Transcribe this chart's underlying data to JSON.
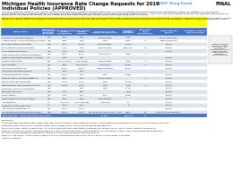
{
  "title_line1": "Michigan Health Insurance Rate Change Requests for 2016",
  "title_link": "SERFF Filing Portal",
  "title_right": "FINAL",
  "title_line2": "Individual Policies (APPROVED)",
  "bg_color": "#ffffff",
  "header_bg": "#4472c4",
  "header_text_color": "#ffffff",
  "row_alt1": "#dce6f1",
  "row_alt2": "#ffffff",
  "yellow_bg": "#ffff00",
  "total_bg": "#4472c4",
  "total_text": "#ffffff",
  "columns": [
    "Issuer/Insurer",
    "Participation\nin Federally\nFacilitated\nMarketplace",
    "Requested Rate\nChange\n(Unrestricted)",
    "Approved Rate\nChange\n(Actuarial)",
    "Premium Rate from\nInsurers Exceeding 10%",
    "Number of\nAffected\nIndividuals",
    "Enrollment\nOn/Off\n(Marketplace)",
    "SERFF Tracking\nNumber",
    "Estimated Adjusted\nRate Conversion"
  ],
  "rows": [
    [
      "AmeriHealth Insurance Company",
      "Yes",
      "8.5%",
      "4.0%",
      "Indeterminable",
      "1036",
      "",
      "MI-AHLI-2015-0005",
      ""
    ],
    [
      "Anthem Health Ins of OH dba Healthy Indiana",
      "Yes",
      "6.8%",
      "3.3%",
      "None",
      "10189",
      "0",
      "MI-TPIT-2015-0001",
      ""
    ],
    [
      "Blue Care Network of Michigan",
      "Yes",
      "4.7%",
      "14.7%",
      "Indeterminable",
      "17,049",
      "",
      "various",
      ""
    ],
    [
      "Blue Cross Blue Shield of Michigan",
      "Yes",
      "-1.0%",
      "1.0%",
      "Indeterminable",
      "1045,404",
      "14",
      "various",
      ""
    ],
    [
      "Celtic Insurance Company",
      "Yes",
      "8.9%",
      "13.0%",
      "",
      "",
      "",
      "various",
      ""
    ],
    [
      "Consumers Mutual Insurance of Michigan",
      "Yes",
      "40.3%",
      "29.7%",
      "BCH: 20.7%",
      "5938",
      "0",
      "",
      ""
    ],
    [
      "Country Life Insurance Company of Indiana",
      "No",
      "8.0%",
      "1.9%",
      "",
      "",
      "",
      "various",
      ""
    ],
    [
      "Coventry Health Care",
      "Yes",
      "12.0% (varies)",
      "3.2% (varies)",
      "Indeterminable",
      "1214",
      "0",
      "various",
      ""
    ],
    [
      "HAP Insurance",
      "Yes",
      "6.5%",
      "30.0% (est)",
      "30.0% (est)",
      "20,501",
      "0",
      "various",
      ""
    ],
    [
      "HMO Plus of Michigan, Inc.",
      "Yes",
      "10.5%",
      "10.5%",
      "Marketplace only",
      "varied",
      "",
      "various",
      ""
    ],
    [
      "Harleysville Insurance Company",
      "No",
      "8.0%",
      "8.0%",
      "",
      "",
      "",
      "",
      ""
    ],
    [
      "Humana Insurance Company",
      "Yes",
      "19.6%",
      "4.0%",
      "4.0%",
      "varied",
      "",
      "various",
      ""
    ],
    [
      "Meridian Health Plan Technologies, Inc.",
      "Yes",
      "n/a%",
      "4.4%",
      "Indeterminable",
      "",
      "0",
      "various",
      ""
    ],
    [
      "Molina Healthcare of Michigan",
      "Yes",
      "11.4%",
      "-1.3%",
      "None",
      "22,750",
      "",
      "various",
      ""
    ],
    [
      "National Health Plan (COOP) dba CO-OP",
      "Yes",
      "11.6%",
      "14.8%",
      "None",
      "2963",
      "0",
      "various",
      ""
    ],
    [
      "Physicians Health Plan of Michigan",
      "Yes",
      "",
      "8.1%",
      "None",
      "11,432",
      "",
      "various",
      ""
    ],
    [
      "PHP Insurance (Plus)",
      "Yes",
      "7.0%",
      "6.5%",
      "",
      "1,000",
      "",
      "various",
      ""
    ],
    [
      "Priority Health",
      "Yes",
      "2.7%",
      "5.7%",
      "5.7%",
      "varied",
      "",
      "various",
      ""
    ],
    [
      "Priority Health Insurance Company",
      "Yes",
      "8.5%",
      "9.5%",
      "Indeterminable",
      "",
      "",
      "various",
      ""
    ],
    [
      "Total/Weighted",
      "No",
      "3.2% avg",
      "16.0% avg (est)",
      "None (est)",
      "13",
      "",
      "various",
      ""
    ],
    [
      "Coordinated Care Corporation",
      "No",
      "5.7%",
      "5.7%",
      "",
      "5",
      "",
      "various",
      ""
    ],
    [
      "Total National Health Plan, Inc.",
      "Yes",
      "14.7%",
      "11.5%",
      "",
      "",
      "",
      "various",
      ""
    ],
    [
      "UnitedHealthcare Life Insurance Company",
      "Yes",
      "13.3%",
      "11.5%",
      "Off: 13.3% On: CM: 15.3% All: 15%",
      "3,600",
      "63",
      "MI-UHLC-2015-1060-005",
      ""
    ]
  ],
  "total_row": [
    "Total Individual - Excluding Withdrawn Filings",
    "",
    "",
    "",
    "10,394",
    "666,373",
    "75"
  ],
  "note_text": "Bubble Comments\nWould You Attack\nFor 2016: Any\ncalculations\nincluding information\nfrom the SERFF\nFiling Portal using\nthe SERFF\nTracking Number",
  "footnotes": [
    "DEFINITIONS:",
    "Requested/Approved Rate Change (Unrestricted): Effective rate change for the average policyholder in 2016, reflecting the requested distribution of policyholders by plan, age,",
    "geographic area, tobacco status, and other factors. Effective data: [Source: Insurer's SERFF Rate Review Template]",
    "Premium rate from insurers Exceeding 10%: Not to be confused with enrollment-weighted average rate changes. [Source: Insurer's SERFF Rate Review Template]",
    "Number of Affected Individuals: Estimate provided by insurer of the number of individuals impacted by the rate change. [Source: Insurer's SERFF Data Review Template]",
    "Enrollment On/Off (Marketplace/Marketplace): BCBSM calculates proposed rate by reflecting the policy.",
    "SERFF Tracking Number: Filing number assigned to the rate increase request under each insurer's filing in the DIFS SERFF Filing Portal.",
    "Updated: 8/18/2016"
  ],
  "link_color": "#0070c0",
  "footnote_color": "#000000"
}
